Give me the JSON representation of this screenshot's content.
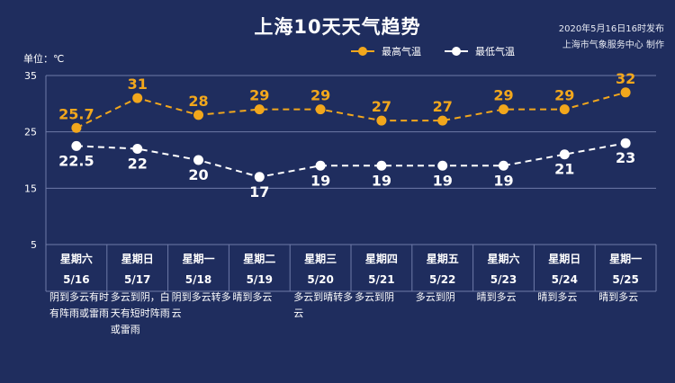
{
  "header": {
    "title": "上海10天天气趋势",
    "date": "2020年5月16日16时发布",
    "source": "上海市气象服务中心 制作",
    "unit_label": "单位：℃"
  },
  "colors": {
    "background": "#1f2d5e",
    "high": "#f2a71c",
    "low": "#ffffff",
    "grid": "#6f7aa8"
  },
  "chart_data": {
    "type": "line",
    "categories": [
      "5/16",
      "5/17",
      "5/18",
      "5/19",
      "5/20",
      "5/21",
      "5/22",
      "5/23",
      "5/24",
      "5/25"
    ],
    "weekdays": [
      "星期六",
      "星期日",
      "星期一",
      "星期二",
      "星期三",
      "星期四",
      "星期五",
      "星期六",
      "星期日",
      "星期一"
    ],
    "series": [
      {
        "name": "最高气温",
        "values": [
          25.7,
          31,
          28,
          29,
          29,
          27,
          27,
          29,
          29,
          32
        ],
        "labels": [
          "25.7",
          "31",
          "28",
          "29",
          "29",
          "27",
          "27",
          "29",
          "29",
          "32"
        ]
      },
      {
        "name": "最低气温",
        "values": [
          22.5,
          22,
          20,
          17,
          19,
          19,
          19,
          19,
          21,
          23
        ],
        "labels": [
          "22.5",
          "22",
          "20",
          "17",
          "19",
          "19",
          "19",
          "19",
          "21",
          "23"
        ]
      }
    ],
    "ylim": [
      5,
      35
    ],
    "yticks": [
      5,
      15,
      25,
      35
    ],
    "legend": "top-center",
    "descriptions": [
      "阴到多云有时有阵雨或雷雨",
      "多云到阴，白天有短时阵雨或雷雨",
      "阴到多云转多云",
      "晴到多云",
      "多云到晴转多云",
      "多云到阴",
      "多云到阴",
      "晴到多云",
      "晴到多云",
      "晴到多云"
    ]
  }
}
